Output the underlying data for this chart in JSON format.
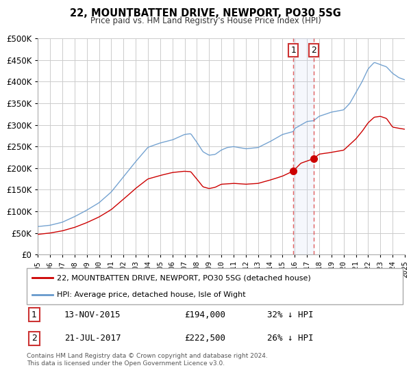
{
  "title": "22, MOUNTBATTEN DRIVE, NEWPORT, PO30 5SG",
  "subtitle": "Price paid vs. HM Land Registry's House Price Index (HPI)",
  "legend_label_red": "22, MOUNTBATTEN DRIVE, NEWPORT, PO30 5SG (detached house)",
  "legend_label_blue": "HPI: Average price, detached house, Isle of Wight",
  "transaction1_date": "13-NOV-2015",
  "transaction1_price": "£194,000",
  "transaction1_hpi": "32% ↓ HPI",
  "transaction2_date": "21-JUL-2017",
  "transaction2_price": "£222,500",
  "transaction2_hpi": "26% ↓ HPI",
  "footer": "Contains HM Land Registry data © Crown copyright and database right 2024.\nThis data is licensed under the Open Government Licence v3.0.",
  "ylim": [
    0,
    500000
  ],
  "yticks": [
    0,
    50000,
    100000,
    150000,
    200000,
    250000,
    300000,
    350000,
    400000,
    450000,
    500000
  ],
  "color_red": "#cc0000",
  "color_blue": "#6699cc",
  "color_shading": "#ddeeff",
  "marker1_x": 2015.88,
  "marker1_y": 194000,
  "marker2_x": 2017.55,
  "marker2_y": 222500,
  "vline1_x": 2015.88,
  "vline2_x": 2017.55,
  "xlim_start": 1995,
  "xlim_end": 2025
}
